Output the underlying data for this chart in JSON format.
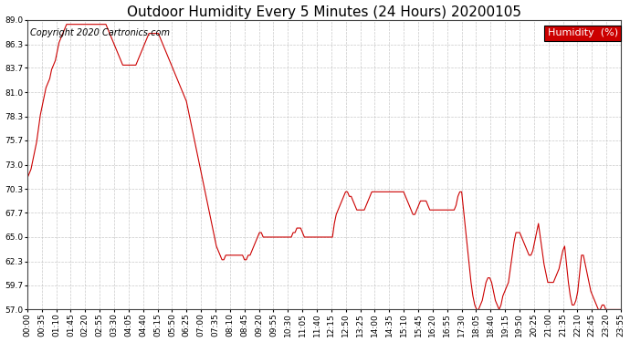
{
  "title": "Outdoor Humidity Every 5 Minutes (24 Hours) 20200105",
  "copyright": "Copyright 2020 Cartronics.com",
  "legend_label": "Humidity  (%)",
  "line_color": "#cc0000",
  "bg_color": "#ffffff",
  "plot_bg_color": "#ffffff",
  "grid_color": "#bbbbbb",
  "legend_bg": "#cc0000",
  "legend_text_color": "#ffffff",
  "ylim": [
    57.0,
    89.0
  ],
  "yticks": [
    57.0,
    59.7,
    62.3,
    65.0,
    67.7,
    70.3,
    73.0,
    75.7,
    78.3,
    81.0,
    83.7,
    86.3,
    89.0
  ],
  "humidity_values": [
    71.5,
    72.0,
    72.5,
    73.5,
    74.5,
    75.5,
    77.0,
    78.5,
    79.5,
    80.5,
    81.5,
    82.0,
    82.5,
    83.5,
    84.0,
    84.5,
    85.5,
    86.5,
    87.0,
    87.5,
    88.0,
    88.5,
    88.5,
    88.5,
    88.5,
    88.5,
    88.5,
    88.5,
    88.5,
    88.5,
    88.5,
    88.5,
    88.5,
    88.5,
    88.5,
    88.5,
    88.5,
    88.5,
    88.5,
    88.5,
    88.5,
    88.5,
    88.5,
    88.0,
    87.5,
    87.0,
    86.5,
    86.0,
    85.5,
    85.0,
    84.5,
    84.0,
    84.0,
    84.0,
    84.0,
    84.0,
    84.0,
    84.0,
    84.0,
    84.5,
    85.0,
    85.5,
    86.0,
    86.5,
    87.0,
    87.5,
    87.5,
    87.5,
    87.5,
    87.5,
    87.5,
    87.0,
    86.5,
    86.0,
    85.5,
    85.0,
    84.5,
    84.0,
    83.5,
    83.0,
    82.5,
    82.0,
    81.5,
    81.0,
    80.5,
    80.0,
    79.0,
    78.0,
    77.0,
    76.0,
    75.0,
    74.0,
    73.0,
    72.0,
    71.0,
    70.0,
    69.0,
    68.0,
    67.0,
    66.0,
    65.0,
    64.0,
    63.5,
    63.0,
    62.5,
    62.5,
    63.0,
    63.0,
    63.0,
    63.0,
    63.0,
    63.0,
    63.0,
    63.0,
    63.0,
    63.0,
    62.5,
    62.5,
    63.0,
    63.0,
    63.5,
    64.0,
    64.5,
    65.0,
    65.5,
    65.5,
    65.0,
    65.0,
    65.0,
    65.0,
    65.0,
    65.0,
    65.0,
    65.0,
    65.0,
    65.0,
    65.0,
    65.0,
    65.0,
    65.0,
    65.0,
    65.0,
    65.5,
    65.5,
    66.0,
    66.0,
    66.0,
    65.5,
    65.0,
    65.0,
    65.0,
    65.0,
    65.0,
    65.0,
    65.0,
    65.0,
    65.0,
    65.0,
    65.0,
    65.0,
    65.0,
    65.0,
    65.0,
    65.0,
    66.5,
    67.5,
    68.0,
    68.5,
    69.0,
    69.5,
    70.0,
    70.0,
    69.5,
    69.5,
    69.0,
    68.5,
    68.0,
    68.0,
    68.0,
    68.0,
    68.0,
    68.5,
    69.0,
    69.5,
    70.0,
    70.0,
    70.0,
    70.0,
    70.0,
    70.0,
    70.0,
    70.0,
    70.0,
    70.0,
    70.0,
    70.0,
    70.0,
    70.0,
    70.0,
    70.0,
    70.0,
    70.0,
    69.5,
    69.0,
    68.5,
    68.0,
    67.5,
    67.5,
    68.0,
    68.5,
    69.0,
    69.0,
    69.0,
    69.0,
    68.5,
    68.0,
    68.0,
    68.0,
    68.0,
    68.0,
    68.0,
    68.0,
    68.0,
    68.0,
    68.0,
    68.0,
    68.0,
    68.0,
    68.0,
    68.5,
    69.5,
    70.0,
    70.0,
    68.0,
    66.0,
    64.0,
    62.0,
    60.0,
    58.5,
    57.5,
    57.0,
    57.0,
    57.5,
    58.0,
    59.0,
    60.0,
    60.5,
    60.5,
    60.0,
    59.0,
    58.0,
    57.5,
    57.0,
    57.5,
    58.5,
    59.0,
    59.5,
    60.0,
    61.5,
    63.0,
    64.5,
    65.5,
    65.5,
    65.5,
    65.0,
    64.5,
    64.0,
    63.5,
    63.0,
    63.0,
    63.5,
    64.5,
    65.5,
    66.5,
    65.0,
    63.5,
    62.0,
    61.0,
    60.0,
    60.0,
    60.0,
    60.0,
    60.5,
    61.0,
    61.5,
    62.5,
    63.5,
    64.0,
    62.0,
    60.0,
    58.5,
    57.5,
    57.5,
    58.0,
    59.0,
    61.0,
    63.0,
    63.0,
    62.0,
    61.0,
    60.0,
    59.0,
    58.5,
    58.0,
    57.5,
    57.0,
    57.0,
    57.5,
    57.5,
    57.0,
    57.0,
    57.0,
    57.0,
    57.0,
    57.0,
    57.0,
    57.0,
    57.0
  ],
  "xtick_labels": [
    "00:00",
    "00:35",
    "01:10",
    "01:45",
    "02:20",
    "02:55",
    "03:30",
    "04:05",
    "04:40",
    "05:15",
    "05:50",
    "06:25",
    "07:00",
    "07:35",
    "08:10",
    "08:45",
    "09:20",
    "09:55",
    "10:30",
    "11:05",
    "11:40",
    "12:15",
    "12:50",
    "13:25",
    "14:00",
    "14:35",
    "15:10",
    "15:45",
    "16:20",
    "16:55",
    "17:30",
    "18:05",
    "18:40",
    "19:15",
    "19:50",
    "20:25",
    "21:00",
    "21:35",
    "22:10",
    "22:45",
    "23:20",
    "23:55"
  ],
  "title_fontsize": 11,
  "copyright_fontsize": 7,
  "axis_fontsize": 6.5,
  "legend_fontsize": 8
}
